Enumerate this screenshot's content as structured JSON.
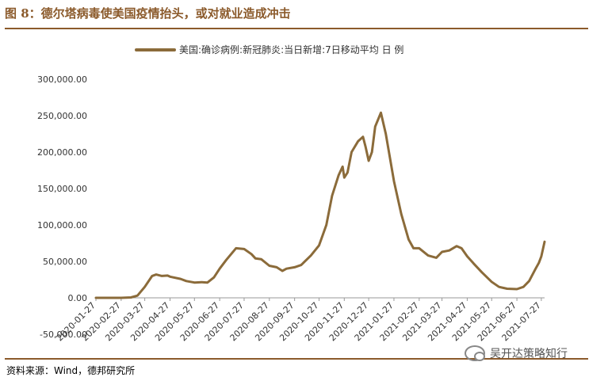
{
  "header": {
    "title": "图 8：德尔塔病毒使美国疫情抬头，或对就业造成冲击"
  },
  "footer": {
    "source": "资料来源：Wind，德邦研究所",
    "watermark": "吴开达策略知行"
  },
  "colors": {
    "accent": "#8b5a2b",
    "series": "#8b6b3a"
  },
  "chart_data": {
    "type": "line",
    "title": "",
    "legend_position": "top-center",
    "grid": false,
    "series": [
      {
        "name": "美国:确诊病例:新冠肺炎:当日新增:7日移动平均 日 例",
        "points": [
          [
            "2020-01-27",
            0
          ],
          [
            "2020-02-27",
            0
          ],
          [
            "2020-03-10",
            500
          ],
          [
            "2020-03-18",
            3000
          ],
          [
            "2020-03-27",
            15000
          ],
          [
            "2020-04-05",
            30000
          ],
          [
            "2020-04-10",
            32000
          ],
          [
            "2020-04-17",
            30000
          ],
          [
            "2020-04-24",
            30500
          ],
          [
            "2020-04-27",
            29000
          ],
          [
            "2020-05-10",
            26000
          ],
          [
            "2020-05-17",
            23000
          ],
          [
            "2020-05-27",
            21000
          ],
          [
            "2020-06-05",
            21500
          ],
          [
            "2020-06-12",
            21000
          ],
          [
            "2020-06-20",
            28000
          ],
          [
            "2020-06-27",
            40000
          ],
          [
            "2020-07-05",
            52000
          ],
          [
            "2020-07-17",
            68000
          ],
          [
            "2020-07-27",
            67000
          ],
          [
            "2020-08-05",
            60000
          ],
          [
            "2020-08-10",
            54000
          ],
          [
            "2020-08-17",
            53000
          ],
          [
            "2020-08-27",
            44000
          ],
          [
            "2020-09-05",
            42000
          ],
          [
            "2020-09-12",
            37000
          ],
          [
            "2020-09-17",
            40000
          ],
          [
            "2020-09-27",
            42000
          ],
          [
            "2020-10-05",
            45000
          ],
          [
            "2020-10-17",
            58000
          ],
          [
            "2020-10-27",
            72000
          ],
          [
            "2020-11-05",
            100000
          ],
          [
            "2020-11-12",
            140000
          ],
          [
            "2020-11-20",
            168000
          ],
          [
            "2020-11-25",
            180000
          ],
          [
            "2020-11-27",
            165000
          ],
          [
            "2020-12-01",
            172000
          ],
          [
            "2020-12-06",
            200000
          ],
          [
            "2020-12-14",
            215000
          ],
          [
            "2020-12-20",
            221000
          ],
          [
            "2020-12-23",
            208000
          ],
          [
            "2020-12-27",
            188000
          ],
          [
            "2020-12-31",
            200000
          ],
          [
            "2021-01-04",
            235000
          ],
          [
            "2021-01-11",
            254000
          ],
          [
            "2021-01-17",
            225000
          ],
          [
            "2021-01-27",
            160000
          ],
          [
            "2021-02-05",
            115000
          ],
          [
            "2021-02-14",
            80000
          ],
          [
            "2021-02-20",
            68000
          ],
          [
            "2021-02-27",
            68000
          ],
          [
            "2021-03-10",
            58000
          ],
          [
            "2021-03-20",
            55000
          ],
          [
            "2021-03-27",
            63000
          ],
          [
            "2021-04-05",
            65000
          ],
          [
            "2021-04-14",
            71000
          ],
          [
            "2021-04-20",
            68000
          ],
          [
            "2021-04-27",
            57000
          ],
          [
            "2021-05-05",
            47000
          ],
          [
            "2021-05-15",
            35000
          ],
          [
            "2021-05-27",
            22000
          ],
          [
            "2021-06-05",
            15000
          ],
          [
            "2021-06-15",
            12500
          ],
          [
            "2021-06-27",
            12000
          ],
          [
            "2021-07-05",
            15000
          ],
          [
            "2021-07-12",
            23000
          ],
          [
            "2021-07-20",
            40000
          ],
          [
            "2021-07-24",
            48000
          ],
          [
            "2021-07-27",
            57000
          ],
          [
            "2021-07-31",
            77000
          ]
        ]
      }
    ],
    "y_axis": {
      "min": -50000,
      "max": 300000,
      "ticks": [
        -50000,
        0,
        50000,
        100000,
        150000,
        200000,
        250000,
        300000
      ],
      "tick_labels": [
        "-50,000.00",
        "0.00",
        "50,000.00",
        "100,000.00",
        "150,000.00",
        "200,000.00",
        "250,000.00",
        "300,000.00"
      ]
    },
    "x_axis": {
      "min": "2020-01-27",
      "max": "2021-07-31",
      "ticks": [
        "2020-01-27",
        "2020-02-27",
        "2020-03-27",
        "2020-04-27",
        "2020-05-27",
        "2020-06-27",
        "2020-07-27",
        "2020-08-27",
        "2020-09-27",
        "2020-10-27",
        "2020-11-27",
        "2020-12-27",
        "2021-01-27",
        "2021-02-27",
        "2021-03-27",
        "2021-04-27",
        "2021-05-27",
        "2021-06-27",
        "2021-07-27"
      ]
    }
  }
}
